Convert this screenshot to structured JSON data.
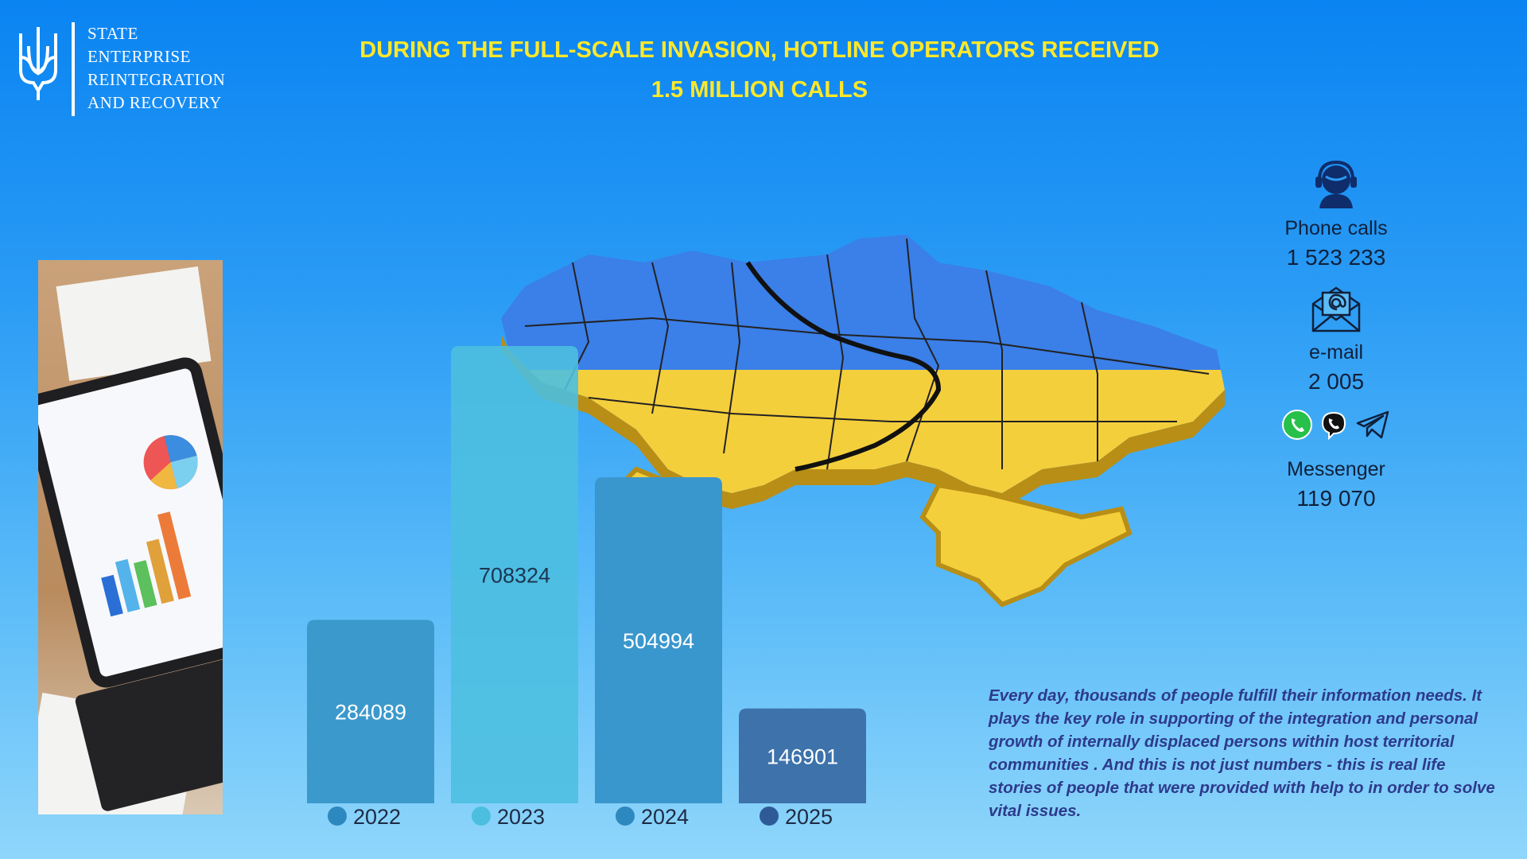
{
  "organization": {
    "lines": [
      "STATE",
      "ENTERPRISE",
      "REINTEGRATION",
      "AND RECOVERY"
    ]
  },
  "headline": {
    "line1": "DURING THE FULL-SCALE INVASION, HOTLINE OPERATORS RECEIVED",
    "line2": "1.5 MILLION CALLS"
  },
  "contacts": {
    "phone": {
      "label": "Phone calls",
      "value": "1 523 233",
      "icon": "operator-headset-icon"
    },
    "email": {
      "label": "e-mail",
      "value": "2 005",
      "icon": "envelope-at-icon"
    },
    "messenger": {
      "label": "Messenger",
      "value": "119 070",
      "icons": [
        "whatsapp-icon",
        "viber-icon",
        "telegram-icon"
      ]
    }
  },
  "description": "Every day, thousands of people  fulfill   their information needs. It plays the key role in supporting of the integration and  personal growth of internally displaced persons within host territorial communities . And this is not just numbers  - this is real life stories of people that were provided with help to in order to solve vital issues.",
  "colors": {
    "headline": "#ffe82a",
    "flag_blue": "#3b7fe8",
    "flag_yellow": "#f4cf3c",
    "bar_2022": "#3c99cc",
    "bar_2023": "#4cbfe0",
    "bar_2024": "#3a97cd",
    "bar_2025": "#3d72ab"
  },
  "chart_data": {
    "type": "bar",
    "categories": [
      "2022",
      "2023",
      "2024",
      "2025"
    ],
    "values": [
      284089,
      708324,
      504994,
      146901
    ],
    "value_labels": [
      "284089",
      "708324",
      "504994",
      "146901"
    ],
    "bar_colors": [
      "#3c99cc",
      "#4cbfe0",
      "#3a97cd",
      "#3d72ab"
    ],
    "dot_colors": [
      "#2e88c0",
      "#4cbfe0",
      "#2e88c0",
      "#2f5a98"
    ],
    "ylim": [
      0,
      708324
    ],
    "grid": false,
    "legend": "bottom"
  }
}
